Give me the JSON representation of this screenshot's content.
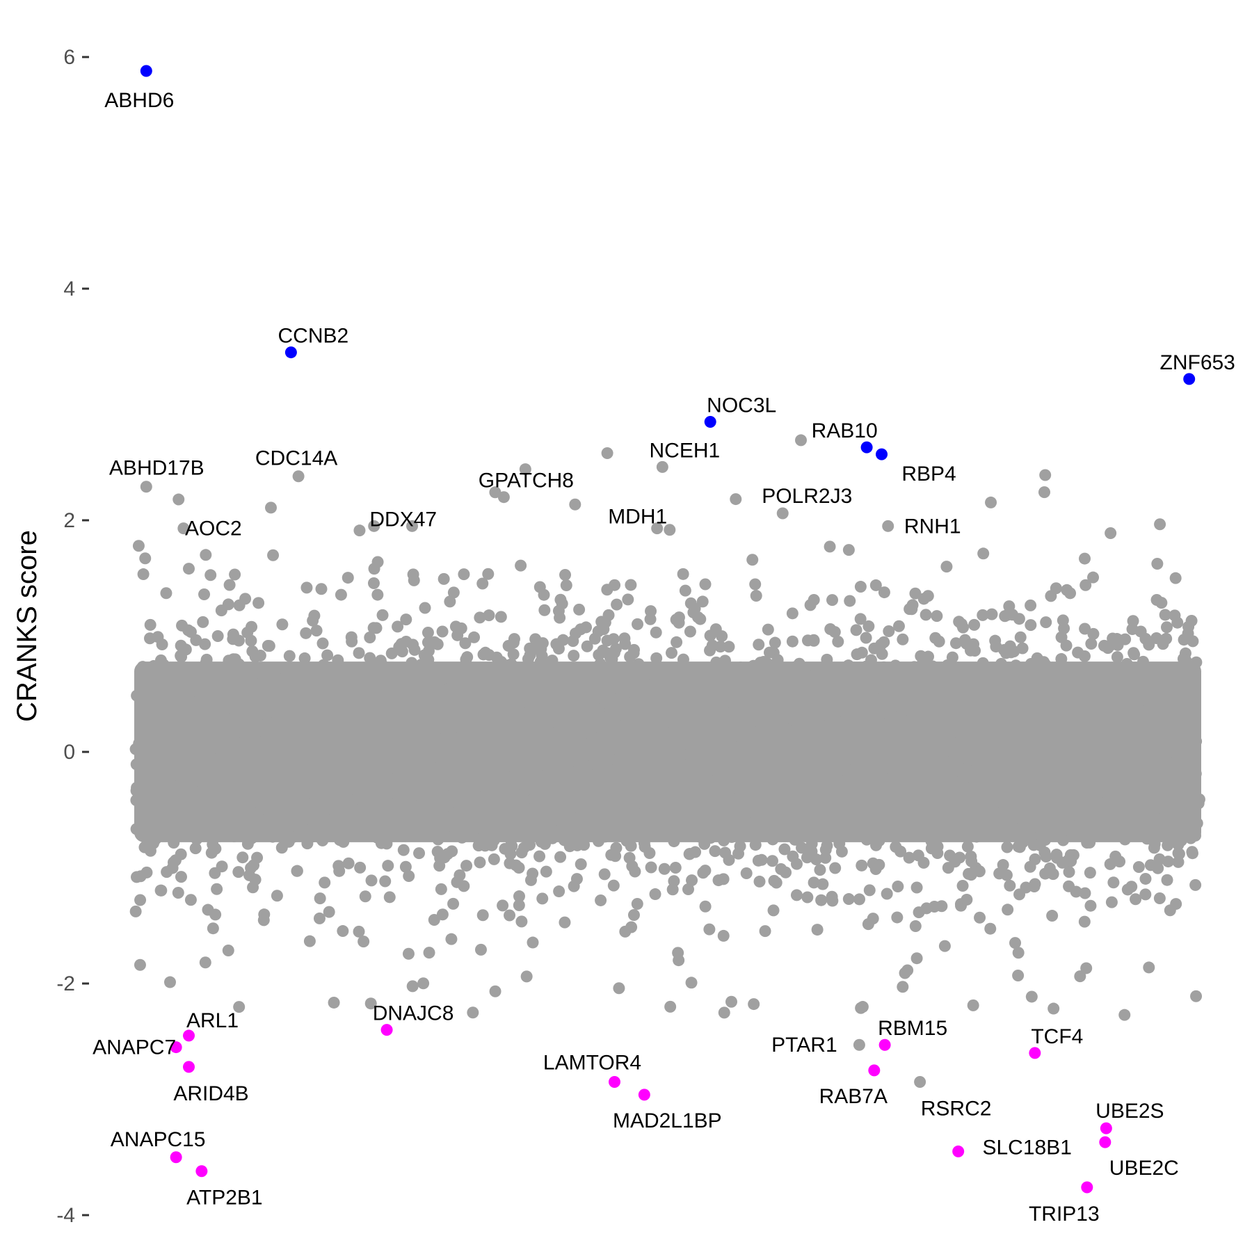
{
  "chart_data": {
    "type": "scatter",
    "title": "",
    "xlabel": "",
    "ylabel": "CRANKS score",
    "ylim": [
      -4.0,
      6.1
    ],
    "y_ticks": [
      6,
      4,
      2,
      0,
      -2,
      -4
    ],
    "y_tick_labels": [
      "6",
      "4",
      "2",
      "0",
      "-2",
      "-4"
    ],
    "x_axis_shown": false,
    "grid": false,
    "colors": {
      "background": "#FFFFFF",
      "neutral": "#A0A0A0",
      "high": "#0000FF",
      "low": "#FF00FF",
      "text": "#000000",
      "tick_text": "#4D4D4D"
    },
    "background_points": {
      "color": "#A0A0A0",
      "approx_count": 18000,
      "y_bulk_range": [
        -0.8,
        0.8
      ],
      "y_extended_range": [
        -2.3,
        2.8
      ]
    },
    "highlighted_points": [
      {
        "label": "ABHD6",
        "x": 0.01,
        "y": 5.88,
        "group": "high"
      },
      {
        "label": "CCNB2",
        "x": 0.146,
        "y": 3.45,
        "group": "high"
      },
      {
        "label": "ZNF653",
        "x": 0.99,
        "y": 3.22,
        "group": "high"
      },
      {
        "label": "NOC3L",
        "x": 0.54,
        "y": 2.85,
        "group": "high"
      },
      {
        "label": "RAB10",
        "x": 0.687,
        "y": 2.63,
        "group": "high"
      },
      {
        "label": "RBP4",
        "x": 0.701,
        "y": 2.57,
        "group": "high"
      },
      {
        "label": "ABHD17B",
        "x": 0.01,
        "y": 2.29,
        "group": "neutral"
      },
      {
        "label": "CDC14A",
        "x": 0.153,
        "y": 2.38,
        "group": "neutral"
      },
      {
        "label": "AOC2",
        "x": 0.045,
        "y": 1.93,
        "group": "neutral"
      },
      {
        "label": "DDX47",
        "x": 0.224,
        "y": 1.95,
        "group": "neutral"
      },
      {
        "label": "GPATCH8",
        "x": 0.346,
        "y": 2.2,
        "group": "neutral"
      },
      {
        "label": "NCEH1",
        "x": 0.495,
        "y": 2.46,
        "group": "neutral"
      },
      {
        "label": "MDH1",
        "x": 0.49,
        "y": 1.93,
        "group": "neutral"
      },
      {
        "label": "POLR2J3",
        "x": 0.608,
        "y": 2.06,
        "group": "neutral"
      },
      {
        "label": "RNH1",
        "x": 0.707,
        "y": 1.95,
        "group": "neutral"
      },
      {
        "label": "ARL1",
        "x": 0.05,
        "y": -2.45,
        "group": "low"
      },
      {
        "label": "ANAPC7",
        "x": 0.038,
        "y": -2.55,
        "group": "low"
      },
      {
        "label": "ARID4B",
        "x": 0.05,
        "y": -2.72,
        "group": "low"
      },
      {
        "label": "DNAJC8",
        "x": 0.236,
        "y": -2.4,
        "group": "low"
      },
      {
        "label": "LAMTOR4",
        "x": 0.45,
        "y": -2.85,
        "group": "low"
      },
      {
        "label": "MAD2L1BP",
        "x": 0.478,
        "y": -2.96,
        "group": "low"
      },
      {
        "label": "PTAR1",
        "x": 0.68,
        "y": -2.53,
        "group": "neutral"
      },
      {
        "label": "RBM15",
        "x": 0.704,
        "y": -2.53,
        "group": "low"
      },
      {
        "label": "RAB7A",
        "x": 0.694,
        "y": -2.75,
        "group": "low"
      },
      {
        "label": "RSRC2",
        "x": 0.737,
        "y": -2.85,
        "group": "neutral"
      },
      {
        "label": "TCF4",
        "x": 0.845,
        "y": -2.6,
        "group": "low"
      },
      {
        "label": "UBE2S",
        "x": 0.912,
        "y": -3.25,
        "group": "low"
      },
      {
        "label": "UBE2C",
        "x": 0.911,
        "y": -3.37,
        "group": "low"
      },
      {
        "label": "SLC18B1",
        "x": 0.773,
        "y": -3.45,
        "group": "low"
      },
      {
        "label": "ANAPC15",
        "x": 0.038,
        "y": -3.5,
        "group": "low"
      },
      {
        "label": "ATP2B1",
        "x": 0.062,
        "y": -3.62,
        "group": "low"
      },
      {
        "label": "TRIP13",
        "x": 0.894,
        "y": -3.76,
        "group": "low"
      }
    ]
  }
}
